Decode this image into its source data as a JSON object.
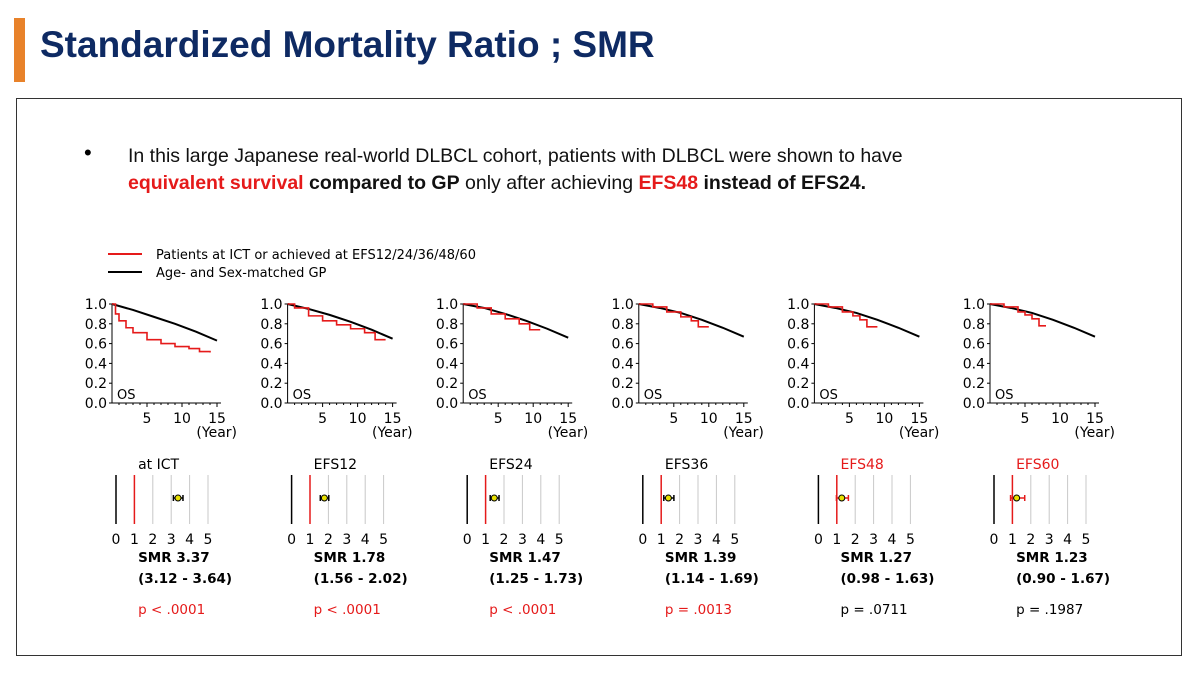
{
  "slide": {
    "title": "Standardized Mortality Ratio ; SMR",
    "accent_color": "#e8822a",
    "title_color": "#0e2a63",
    "bullet": {
      "part1": "In this large Japanese real-world DLBCL cohort, patients with DLBCL were shown to have",
      "part2": "equivalent survival",
      "part3": " compared to GP",
      "part4": " only after achieving ",
      "part5": "EFS48",
      "part6": " instead of EFS24."
    }
  },
  "chart_data": {
    "type": "line",
    "legend": [
      {
        "label": "Patients at ICT or achieved at EFS12/24/36/48/60",
        "color": "#e51a1a"
      },
      {
        "label": "Age- and Sex-matched GP",
        "color": "#000000"
      }
    ],
    "survival_axes": {
      "ylim": [
        0.0,
        1.0
      ],
      "yticks": [
        "1.0",
        "0.8",
        "0.6",
        "0.4",
        "0.2",
        "0.0"
      ],
      "xticks": [
        "5",
        "10",
        "15"
      ],
      "xlabel": "(Year)",
      "panel_label": "OS"
    },
    "forest_axes": {
      "xticks": [
        "0",
        "1",
        "2",
        "3",
        "4",
        "5"
      ],
      "xlim": [
        0,
        5
      ]
    },
    "panels": [
      {
        "name": "at ICT",
        "label_red": false,
        "red_curve": {
          "x": [
            0,
            0.5,
            1,
            2,
            3,
            5,
            7,
            9,
            11,
            12.5,
            14
          ],
          "y": [
            1.0,
            0.9,
            0.83,
            0.76,
            0.71,
            0.64,
            0.6,
            0.57,
            0.55,
            0.52,
            0.51
          ]
        },
        "gp_curve": {
          "x": [
            0,
            3,
            6,
            9,
            12,
            15
          ],
          "y": [
            1.0,
            0.94,
            0.87,
            0.8,
            0.72,
            0.63
          ]
        },
        "smr": "SMR 3.37",
        "ci": "(3.12 - 3.64)",
        "smr_value": 3.37,
        "ci_low": 3.12,
        "ci_high": 3.64,
        "p": "p < .0001",
        "p_red": true
      },
      {
        "name": "EFS12",
        "label_red": false,
        "red_curve": {
          "x": [
            0,
            1,
            3,
            5,
            7,
            9,
            11,
            12.5,
            14
          ],
          "y": [
            1.0,
            0.96,
            0.88,
            0.83,
            0.79,
            0.75,
            0.71,
            0.64,
            0.64
          ]
        },
        "gp_curve": {
          "x": [
            0,
            3,
            6,
            9,
            12,
            15
          ],
          "y": [
            1.0,
            0.95,
            0.89,
            0.82,
            0.74,
            0.65
          ]
        },
        "smr": "SMR 1.78",
        "ci": "(1.56 - 2.02)",
        "smr_value": 1.78,
        "ci_low": 1.56,
        "ci_high": 2.02,
        "p": "p < .0001",
        "p_red": true
      },
      {
        "name": "EFS24",
        "label_red": false,
        "red_curve": {
          "x": [
            0,
            2,
            4,
            6,
            8,
            9.5,
            11
          ],
          "y": [
            1.0,
            0.96,
            0.9,
            0.85,
            0.8,
            0.74,
            0.74
          ]
        },
        "gp_curve": {
          "x": [
            0,
            3,
            6,
            9,
            12,
            15
          ],
          "y": [
            1.0,
            0.96,
            0.9,
            0.83,
            0.75,
            0.66
          ]
        },
        "smr": "SMR 1.47",
        "ci": "(1.25 - 1.73)",
        "smr_value": 1.47,
        "ci_low": 1.25,
        "ci_high": 1.73,
        "p": "p < .0001",
        "p_red": true
      },
      {
        "name": "EFS36",
        "label_red": false,
        "red_curve": {
          "x": [
            0,
            2,
            4,
            6,
            7.5,
            8.5,
            10
          ],
          "y": [
            1.0,
            0.97,
            0.92,
            0.87,
            0.83,
            0.77,
            0.77
          ]
        },
        "gp_curve": {
          "x": [
            0,
            3,
            6,
            9,
            12,
            15
          ],
          "y": [
            1.0,
            0.96,
            0.91,
            0.84,
            0.76,
            0.67
          ]
        },
        "smr": "SMR 1.39",
        "ci": "(1.14 - 1.69)",
        "smr_value": 1.39,
        "ci_low": 1.14,
        "ci_high": 1.69,
        "p": "p = .0013",
        "p_red": true
      },
      {
        "name": "EFS48",
        "label_red": true,
        "red_curve": {
          "x": [
            0,
            2,
            4,
            5.5,
            6.5,
            7.5,
            9
          ],
          "y": [
            1.0,
            0.97,
            0.92,
            0.88,
            0.84,
            0.77,
            0.77
          ]
        },
        "gp_curve": {
          "x": [
            0,
            3,
            6,
            9,
            12,
            15
          ],
          "y": [
            1.0,
            0.96,
            0.91,
            0.84,
            0.76,
            0.67
          ]
        },
        "smr": "SMR 1.27",
        "ci": "(0.98 - 1.63)",
        "smr_value": 1.27,
        "ci_low": 0.98,
        "ci_high": 1.63,
        "p": "p = .0711",
        "p_red": false
      },
      {
        "name": "EFS60",
        "label_red": true,
        "red_curve": {
          "x": [
            0,
            2,
            4,
            5,
            6,
            7,
            8
          ],
          "y": [
            1.0,
            0.97,
            0.92,
            0.89,
            0.85,
            0.78,
            0.78
          ]
        },
        "gp_curve": {
          "x": [
            0,
            3,
            6,
            9,
            12,
            15
          ],
          "y": [
            1.0,
            0.96,
            0.91,
            0.84,
            0.76,
            0.67
          ]
        },
        "smr": "SMR 1.23",
        "ci": "(0.90 - 1.67)",
        "smr_value": 1.23,
        "ci_low": 0.9,
        "ci_high": 1.67,
        "p": "p = .1987",
        "p_red": false
      }
    ]
  }
}
